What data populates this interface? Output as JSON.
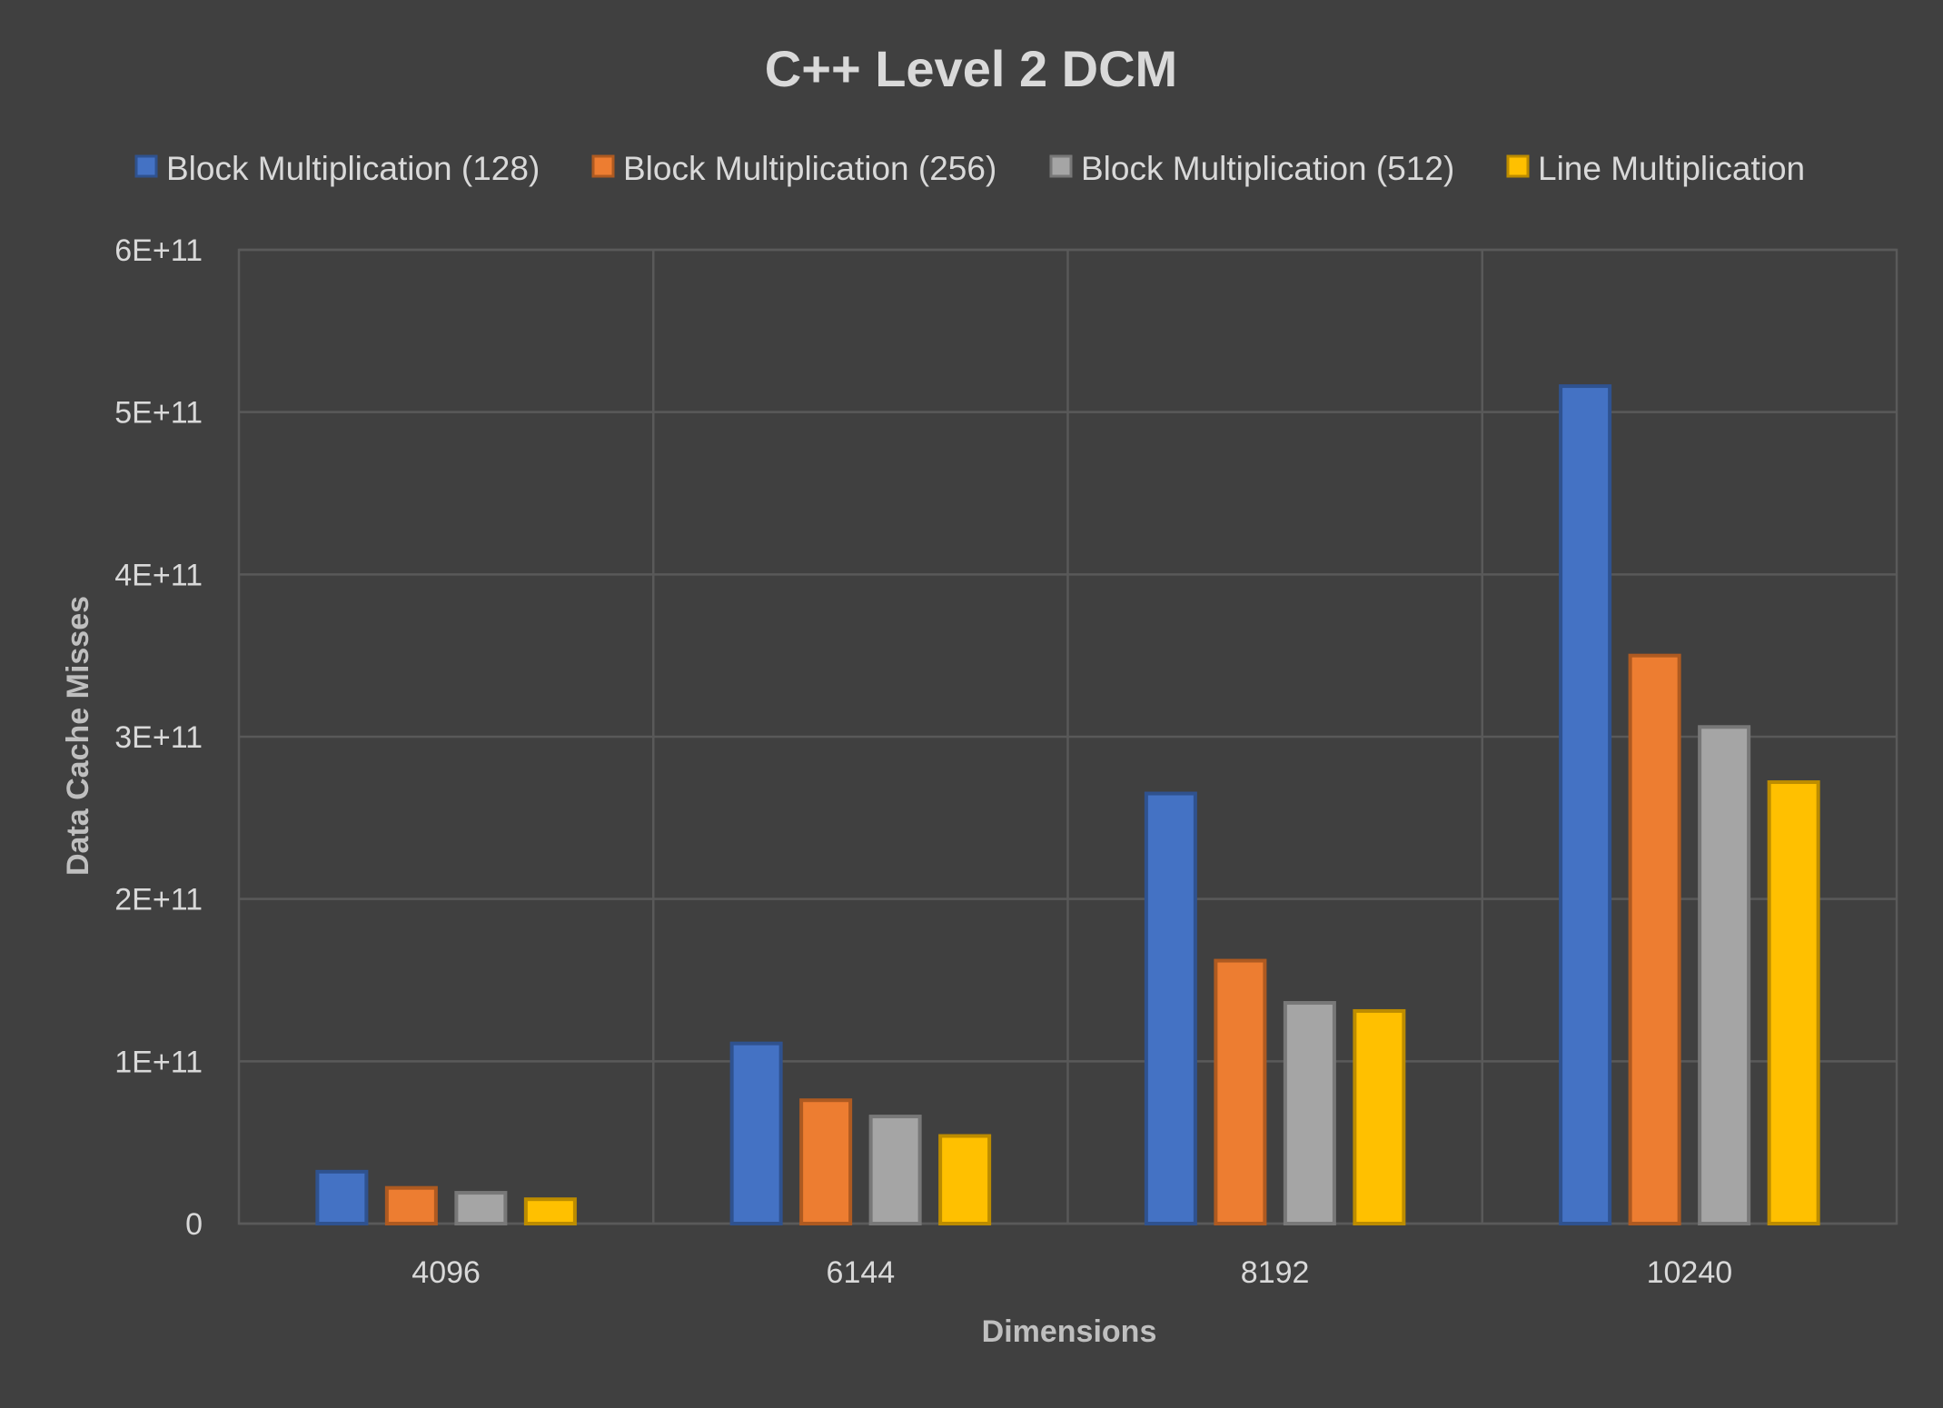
{
  "chart_data": {
    "type": "bar",
    "title": "C++ Level 2 DCM",
    "xlabel": "Dimensions",
    "ylabel": "Data Cache Misses",
    "categories": [
      "4096",
      "6144",
      "8192",
      "10240"
    ],
    "ylim": [
      0,
      600000000000
    ],
    "yticks": [
      {
        "value": 0,
        "label": "0"
      },
      {
        "value": 100000000000,
        "label": "1E+11"
      },
      {
        "value": 200000000000,
        "label": "2E+11"
      },
      {
        "value": 300000000000,
        "label": "3E+11"
      },
      {
        "value": 400000000000,
        "label": "4E+11"
      },
      {
        "value": 500000000000,
        "label": "5E+11"
      },
      {
        "value": 600000000000,
        "label": "6E+11"
      }
    ],
    "grid": true,
    "legend_position": "top",
    "series": [
      {
        "name": "Block Multiplication (128)",
        "color": "#4472c4",
        "border": "#2f528f",
        "values": [
          32000000000,
          111000000000,
          265000000000,
          516000000000
        ]
      },
      {
        "name": "Block Multiplication (256)",
        "color": "#ed7d31",
        "border": "#ae5a21",
        "values": [
          22000000000,
          76000000000,
          162000000000,
          350000000000
        ]
      },
      {
        "name": "Block Multiplication (512)",
        "color": "#a5a5a5",
        "border": "#787878",
        "values": [
          19000000000,
          66000000000,
          136000000000,
          306000000000
        ]
      },
      {
        "name": "Line Multiplication",
        "color": "#ffc000",
        "border": "#bc8c00",
        "values": [
          15000000000,
          54000000000,
          131000000000,
          272000000000
        ]
      }
    ]
  }
}
